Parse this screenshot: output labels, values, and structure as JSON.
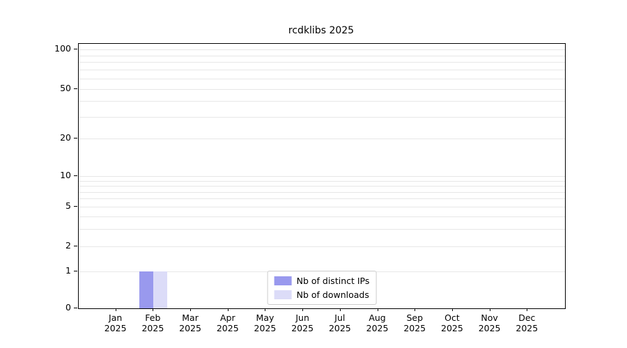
{
  "chart_data": {
    "type": "bar",
    "title": "rcdklibs 2025",
    "categories": [
      "Jan",
      "Feb",
      "Mar",
      "Apr",
      "May",
      "Jun",
      "Jul",
      "Aug",
      "Sep",
      "Oct",
      "Nov",
      "Dec"
    ],
    "x_year": "2025",
    "series": [
      {
        "name": "Nb of distinct IPs",
        "color": "#9999ee",
        "values": [
          0,
          1,
          0,
          0,
          0,
          0,
          0,
          0,
          0,
          0,
          0,
          0
        ]
      },
      {
        "name": "Nb of downloads",
        "color": "#dcdcf8",
        "values": [
          0,
          1,
          0,
          0,
          0,
          0,
          0,
          0,
          0,
          0,
          0,
          0
        ]
      }
    ],
    "y_ticks": [
      100,
      50,
      20,
      10,
      5,
      2,
      1,
      0
    ],
    "y_scale": "log",
    "ylim": [
      0,
      100
    ],
    "grid": true,
    "legend_position": "lower center",
    "xlabel": "",
    "ylabel": ""
  },
  "colors": {
    "grid": "#e7e7e7",
    "axis": "#000000",
    "legend_border": "#cccccc",
    "background": "#ffffff"
  }
}
